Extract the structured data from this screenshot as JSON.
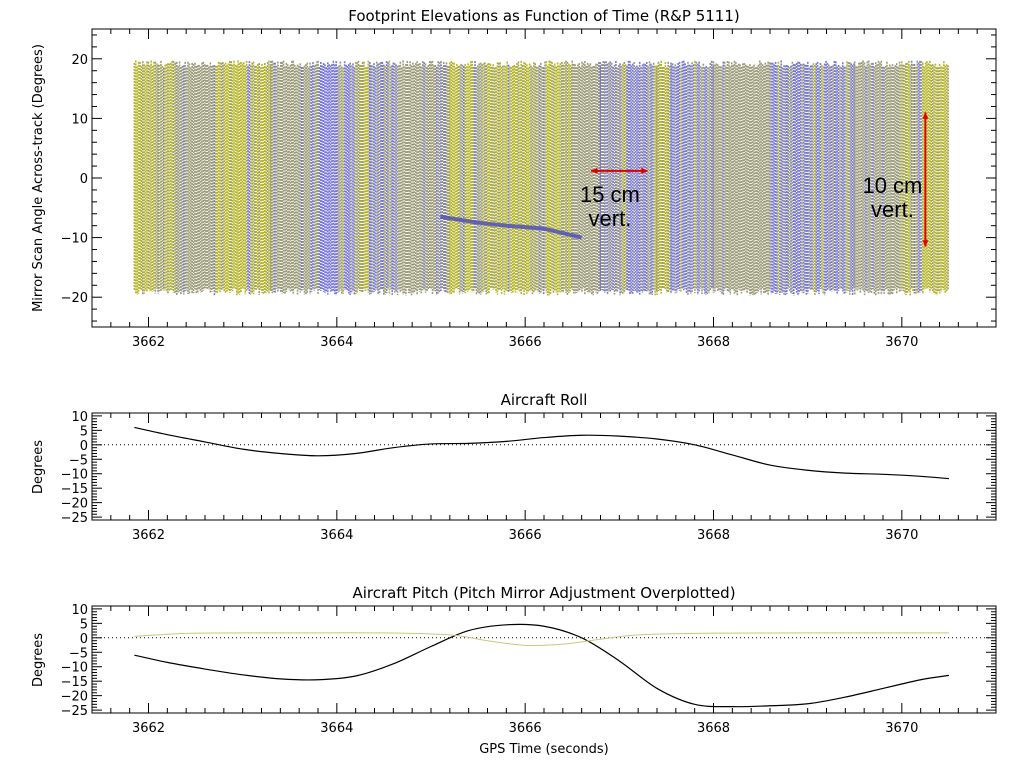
{
  "chart_data": [
    {
      "type": "scatter",
      "title": "Footprint Elevations as Function of Time (R&P 5111)",
      "ylabel": "Mirror Scan Angle Across-track (Degrees)",
      "xlabel": "",
      "xlim": [
        3661.4,
        3671.0
      ],
      "ylim": [
        -25,
        25
      ],
      "xticks": [
        3662,
        3664,
        3666,
        3668,
        3670
      ],
      "yticks": [
        -20,
        -10,
        0,
        10,
        20
      ],
      "xtick_labels": [
        "3662",
        "3664",
        "3666",
        "3668",
        "3670"
      ],
      "ytick_labels": [
        "−20",
        "−10",
        "0",
        "10",
        "20"
      ],
      "x_range": [
        3661.85,
        3670.5
      ],
      "y_range": [
        -19,
        19
      ],
      "colors": {
        "high": "#7878d8",
        "low": "#b4b428",
        "mid": "#9a9a78"
      },
      "elevation_bands": [
        {
          "x0": 3661.85,
          "x1": 3662.3,
          "level": "low"
        },
        {
          "x0": 3662.3,
          "x1": 3662.7,
          "level": "mid"
        },
        {
          "x0": 3662.7,
          "x1": 3663.3,
          "level": "low"
        },
        {
          "x0": 3663.3,
          "x1": 3663.8,
          "level": "mid"
        },
        {
          "x0": 3663.8,
          "x1": 3664.2,
          "level": "high"
        },
        {
          "x0": 3664.2,
          "x1": 3664.35,
          "level": "low"
        },
        {
          "x0": 3664.35,
          "x1": 3664.6,
          "level": "high"
        },
        {
          "x0": 3664.6,
          "x1": 3665.2,
          "level": "mid"
        },
        {
          "x0": 3665.2,
          "x1": 3666.5,
          "level": "low"
        },
        {
          "x0": 3666.5,
          "x1": 3666.8,
          "level": "mid"
        },
        {
          "x0": 3666.8,
          "x1": 3667.4,
          "level": "high"
        },
        {
          "x0": 3667.4,
          "x1": 3667.55,
          "level": "low"
        },
        {
          "x0": 3667.55,
          "x1": 3668.0,
          "level": "high"
        },
        {
          "x0": 3668.0,
          "x1": 3668.6,
          "level": "mid"
        },
        {
          "x0": 3668.6,
          "x1": 3669.5,
          "level": "high"
        },
        {
          "x0": 3669.5,
          "x1": 3670.0,
          "level": "mid"
        },
        {
          "x0": 3670.0,
          "x1": 3670.5,
          "level": "low"
        }
      ],
      "annotations": [
        {
          "lines": [
            "15 cm",
            "vert."
          ],
          "x": 3666.9,
          "y": -4,
          "arrow": {
            "orientation": "horizontal",
            "x0": 3666.7,
            "x1": 3667.3,
            "y": 1.2
          }
        },
        {
          "lines": [
            "10 cm",
            "vert."
          ],
          "x": 3669.9,
          "y": -2.5,
          "arrow": {
            "orientation": "vertical",
            "x": 3670.25,
            "y0": 11,
            "y1": -11.5
          }
        }
      ],
      "streak": [
        [
          3665.1,
          -6.5
        ],
        [
          3665.5,
          -7.5
        ],
        [
          3665.8,
          -8.0
        ],
        [
          3666.2,
          -8.5
        ],
        [
          3666.6,
          -10.0
        ]
      ]
    },
    {
      "type": "line",
      "title": "Aircraft Roll",
      "ylabel": "Degrees",
      "xlabel": "",
      "xlim": [
        3661.4,
        3671.0
      ],
      "ylim": [
        -26,
        11
      ],
      "xticks": [
        3662,
        3664,
        3666,
        3668,
        3670
      ],
      "yticks": [
        -25,
        -20,
        -15,
        -10,
        -5,
        0,
        5,
        10
      ],
      "xtick_labels": [
        "3662",
        "3664",
        "3666",
        "3668",
        "3670"
      ],
      "ytick_labels": [
        "−25",
        "−20",
        "−15",
        "−10",
        "−5",
        "0",
        "5",
        "10"
      ],
      "series": [
        {
          "x": [
            3661.85,
            3662.2,
            3662.6,
            3663.0,
            3663.4,
            3663.8,
            3664.2,
            3664.6,
            3665.0,
            3665.4,
            3665.8,
            3666.2,
            3666.6,
            3667.0,
            3667.4,
            3667.8,
            3668.2,
            3668.6,
            3669.0,
            3669.4,
            3669.8,
            3670.2,
            3670.5
          ],
          "y": [
            6,
            3.5,
            1.0,
            -1.5,
            -3.0,
            -3.8,
            -3.0,
            -1.0,
            0.3,
            0.5,
            1.2,
            2.5,
            3.3,
            3.0,
            2.0,
            0.0,
            -3.5,
            -7.0,
            -8.8,
            -9.8,
            -10.2,
            -10.9,
            -11.7
          ]
        }
      ],
      "zero_line": true
    },
    {
      "type": "line",
      "title": "Aircraft Pitch (Pitch Mirror Adjustment Overplotted)",
      "ylabel": "Degrees",
      "xlabel": "GPS Time (seconds)",
      "xlim": [
        3661.4,
        3671.0
      ],
      "ylim": [
        -26,
        11
      ],
      "xticks": [
        3662,
        3664,
        3666,
        3668,
        3670
      ],
      "yticks": [
        -25,
        -20,
        -15,
        -10,
        -5,
        0,
        5,
        10
      ],
      "xtick_labels": [
        "3662",
        "3664",
        "3666",
        "3668",
        "3670"
      ],
      "ytick_labels": [
        "−25",
        "−20",
        "−15",
        "−10",
        "−5",
        "0",
        "5",
        "10"
      ],
      "series": [
        {
          "x": [
            3661.85,
            3662.2,
            3662.6,
            3663.0,
            3663.4,
            3663.8,
            3664.2,
            3664.6,
            3665.0,
            3665.4,
            3665.8,
            3666.2,
            3666.6,
            3667.0,
            3667.4,
            3667.8,
            3668.2,
            3668.6,
            3669.0,
            3669.4,
            3669.8,
            3670.2,
            3670.5
          ],
          "y": [
            -6.0,
            -8.5,
            -10.8,
            -12.8,
            -14.2,
            -14.5,
            -13.2,
            -9.0,
            -3.0,
            2.5,
            4.5,
            4.0,
            0.0,
            -8.0,
            -17.5,
            -23.0,
            -23.8,
            -23.5,
            -22.8,
            -20.5,
            -17.5,
            -14.5,
            -13.0
          ],
          "color": "#000000"
        },
        {
          "x": [
            3661.85,
            3662.5,
            3663.5,
            3664.5,
            3665.2,
            3665.6,
            3666.0,
            3666.4,
            3666.8,
            3667.2,
            3668.0,
            3669.0,
            3670.5
          ],
          "y": [
            0.5,
            1.6,
            1.7,
            1.7,
            1.0,
            -1.0,
            -2.6,
            -2.2,
            -0.5,
            1.0,
            1.6,
            1.7,
            1.7
          ],
          "color": "#c8c880"
        }
      ],
      "zero_line": true
    }
  ]
}
